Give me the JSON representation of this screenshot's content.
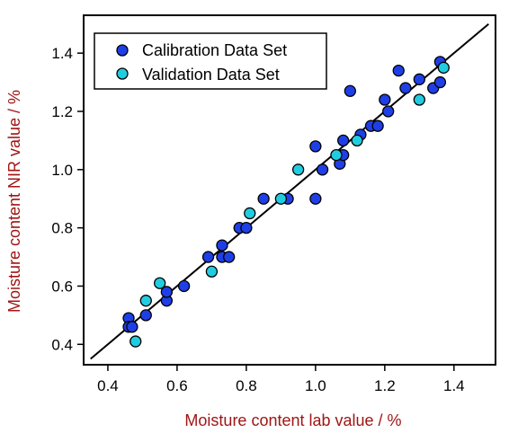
{
  "chart_data": {
    "type": "scatter",
    "xlabel": "Moisture content lab value / %",
    "ylabel": "Moisture content NIR value / %",
    "xlim": [
      0.33,
      1.52
    ],
    "ylim": [
      0.33,
      1.53
    ],
    "x_ticks": [
      "0.4",
      "0.6",
      "0.8",
      "1.0",
      "1.2",
      "1.4"
    ],
    "y_ticks": [
      "0.4",
      "0.6",
      "0.8",
      "1.0",
      "1.2",
      "1.4"
    ],
    "x_tick_values": [
      0.4,
      0.6,
      0.8,
      1.0,
      1.2,
      1.4
    ],
    "y_tick_values": [
      0.4,
      0.6,
      0.8,
      1.0,
      1.2,
      1.4
    ],
    "grid": false,
    "legend_position": "top-left",
    "fit_line": {
      "x": [
        0.35,
        1.5
      ],
      "y": [
        0.35,
        1.5
      ]
    },
    "series": [
      {
        "name": "Calibration Data Set",
        "color": "#1f3fe6",
        "x": [
          0.46,
          0.46,
          0.47,
          0.51,
          0.57,
          0.57,
          0.62,
          0.69,
          0.73,
          0.73,
          0.75,
          0.78,
          0.8,
          0.85,
          0.92,
          1.0,
          1.0,
          1.02,
          1.07,
          1.08,
          1.08,
          1.1,
          1.13,
          1.16,
          1.18,
          1.2,
          1.21,
          1.24,
          1.26,
          1.3,
          1.34,
          1.36,
          1.36
        ],
        "y": [
          0.49,
          0.46,
          0.46,
          0.5,
          0.55,
          0.58,
          0.6,
          0.7,
          0.7,
          0.74,
          0.7,
          0.8,
          0.8,
          0.9,
          0.9,
          0.9,
          1.08,
          1.0,
          1.02,
          1.05,
          1.1,
          1.27,
          1.12,
          1.15,
          1.15,
          1.24,
          1.2,
          1.34,
          1.28,
          1.31,
          1.28,
          1.3,
          1.37
        ]
      },
      {
        "name": "Validation Data Set",
        "color": "#22cce0",
        "x": [
          0.48,
          0.51,
          0.55,
          0.7,
          0.81,
          0.9,
          0.95,
          1.06,
          1.12,
          1.3,
          1.37
        ],
        "y": [
          0.41,
          0.55,
          0.61,
          0.65,
          0.85,
          0.9,
          1.0,
          1.05,
          1.1,
          1.24,
          1.35
        ]
      }
    ]
  }
}
